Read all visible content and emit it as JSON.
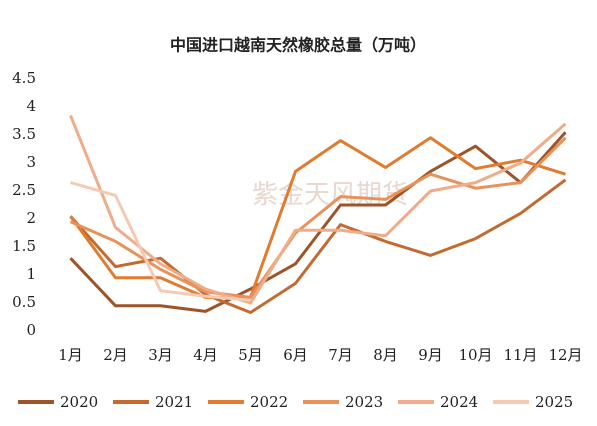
{
  "chart_data": {
    "type": "line",
    "title": "中国进口越南天然橡胶总量（万吨）",
    "watermark": "紫金天风期货",
    "categories": [
      "1月",
      "2月",
      "3月",
      "4月",
      "5月",
      "6月",
      "7月",
      "8月",
      "9月",
      "10月",
      "11月",
      "12月"
    ],
    "ylim": [
      0,
      4.5
    ],
    "yticks": [
      0,
      0.5,
      1,
      1.5,
      2,
      2.5,
      3,
      3.5,
      4,
      4.5
    ],
    "legend": "bottom",
    "series": [
      {
        "name": "2020",
        "color": "#9c5428",
        "values": [
          1.3,
          0.45,
          0.45,
          0.35,
          0.75,
          1.2,
          2.25,
          2.25,
          2.85,
          3.3,
          2.65,
          3.55
        ]
      },
      {
        "name": "2021",
        "color": "#c26a30",
        "values": [
          2.05,
          1.15,
          1.3,
          0.65,
          0.33,
          0.85,
          1.9,
          1.6,
          1.35,
          1.65,
          2.1,
          2.7
        ]
      },
      {
        "name": "2022",
        "color": "#e07b30",
        "values": [
          2.05,
          0.95,
          0.95,
          0.6,
          0.6,
          2.85,
          3.4,
          2.92,
          3.45,
          2.9,
          3.05,
          2.8
        ]
      },
      {
        "name": "2023",
        "color": "#e8925a",
        "values": [
          1.95,
          1.6,
          1.1,
          0.7,
          0.6,
          1.75,
          2.4,
          2.35,
          2.8,
          2.55,
          2.65,
          3.45
        ]
      },
      {
        "name": "2024",
        "color": "#f0ac88",
        "values": [
          3.85,
          1.85,
          1.2,
          0.75,
          0.5,
          1.8,
          1.8,
          1.7,
          2.5,
          2.65,
          3.0,
          3.7
        ]
      },
      {
        "name": "2025",
        "color": "#f5c9b2",
        "values": [
          2.65,
          2.42,
          0.72,
          0.62,
          0.55,
          null,
          null,
          null,
          null,
          null,
          null,
          null
        ]
      }
    ]
  }
}
